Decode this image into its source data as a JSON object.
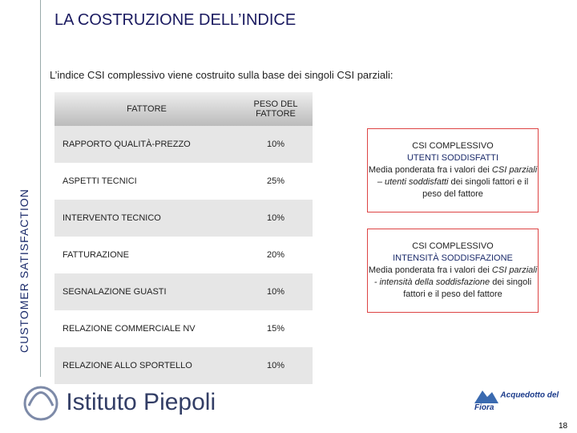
{
  "header": {
    "title": "LA COSTRUZIONE DELL’INDICE",
    "side_label": "CUSTOMER SATISFACTION"
  },
  "intro": "L’indice CSI complessivo viene costruito sulla base dei singoli CSI parziali:",
  "table": {
    "columns": [
      "FATTORE",
      "PESO DEL FATTORE"
    ],
    "rows": [
      [
        "RAPPORTO QUALITÀ-PREZZO",
        "10%"
      ],
      [
        "ASPETTI TECNICI",
        "25%"
      ],
      [
        "INTERVENTO TECNICO",
        "10%"
      ],
      [
        "FATTURAZIONE",
        "20%"
      ],
      [
        "SEGNALAZIONE GUASTI",
        "10%"
      ],
      [
        "RELAZIONE COMMERCIALE NV",
        "15%"
      ],
      [
        "RELAZIONE ALLO SPORTELLO",
        "10%"
      ]
    ]
  },
  "boxes": [
    {
      "title": "CSI COMPLESSIVO",
      "subtitle": "UTENTI SODDISFATTI",
      "text_before": "Media ponderata fra i valori dei ",
      "text_italic": "CSI parziali – utenti soddisfatti",
      "text_after": " dei singoli fattori e il peso del fattore"
    },
    {
      "title": "CSI COMPLESSIVO",
      "subtitle": "INTENSITÀ SODDISFAZIONE",
      "text_before": "Media ponderata fra i valori dei ",
      "text_italic": "CSI parziali - intensità della soddisfazione",
      "text_after": " dei singoli fattori e il peso del fattore"
    }
  ],
  "footer": {
    "logo_left": "Istituto Piepoli",
    "logo_right": "Acquedotto del Fiora",
    "page_number": "18"
  }
}
